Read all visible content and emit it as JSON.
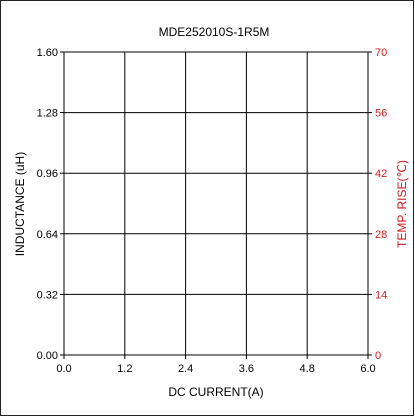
{
  "chart_data": {
    "type": "line",
    "title": "MDE252010S-1R5M",
    "xlabel": "DC CURRENT(A)",
    "ylabel_left": "INDUCTANCE (uH)",
    "ylabel_right": "TEMP. RISE(℃)",
    "xlim": [
      0.0,
      6.0
    ],
    "ylim_left": [
      0.0,
      1.6
    ],
    "ylim_right": [
      0,
      70
    ],
    "x_ticks": [
      "0.0",
      "1.2",
      "2.4",
      "3.6",
      "4.8",
      "6.0"
    ],
    "y_left_ticks": [
      "0.00",
      "0.32",
      "0.64",
      "0.96",
      "1.28",
      "1.60"
    ],
    "y_right_ticks": [
      "0",
      "14",
      "28",
      "42",
      "56",
      "70"
    ],
    "grid": true,
    "series": []
  },
  "colors": {
    "axis": "#000000",
    "right_axis": "#d0191d",
    "text": "#000000"
  }
}
